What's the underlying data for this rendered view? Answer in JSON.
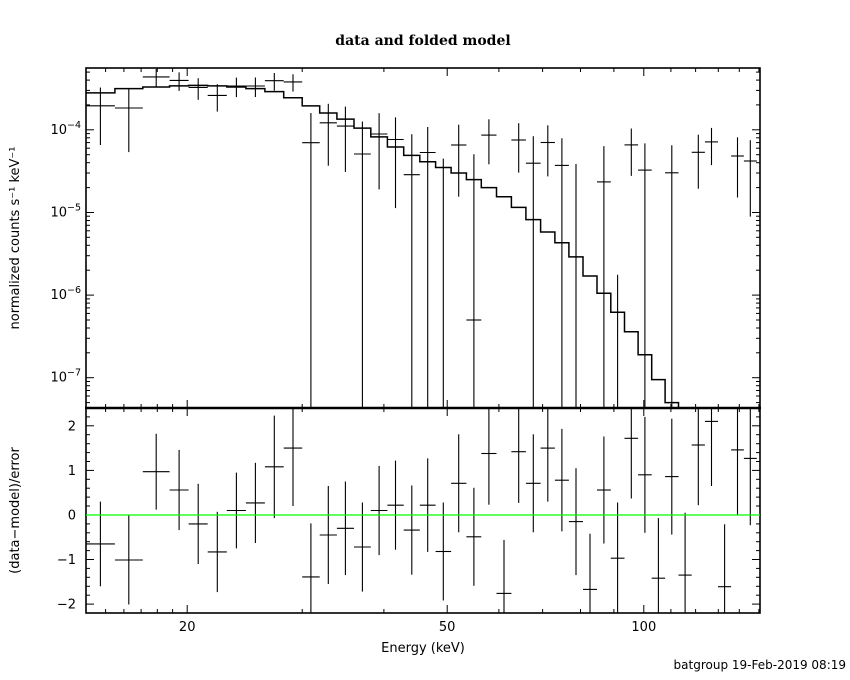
{
  "header": {
    "title": "data and folded model"
  },
  "footer": {
    "credit": "batgroup 19-Feb-2019 08:19"
  },
  "chart_data": {
    "type": "line",
    "title": "data and folded model",
    "legend": "none",
    "grid": "off",
    "background": "#ffffff",
    "line_color": "#000000",
    "zero_line_color": "#00ff00",
    "x_axis": {
      "label": "Energy (keV)",
      "scale": "log",
      "min": 14.0,
      "max": 150.6,
      "major_ticks": [
        20,
        50,
        100
      ],
      "major_tick_labels": [
        "20",
        "50",
        "100"
      ],
      "minor_ticks": [
        15,
        16,
        17,
        18,
        19,
        30,
        40,
        60,
        70,
        80,
        90,
        110,
        120,
        130,
        140,
        150
      ]
    },
    "y_axis_top": {
      "label": "normalized counts s⁻¹ keV⁻¹",
      "scale": "log",
      "min": 4.3e-08,
      "max": 0.00056,
      "major_tick_exponents": [
        -4,
        -5,
        -6,
        -7
      ]
    },
    "y_axis_bottom": {
      "label": "(data−model)/error",
      "scale": "linear",
      "min": -2.2,
      "max": 2.4,
      "major_ticks": [
        -2,
        -1,
        0,
        1,
        2
      ],
      "major_tick_labels": [
        "−2",
        "−1",
        "0",
        "1",
        "2"
      ],
      "minor_step": 0.2
    },
    "bins": [
      {
        "lo": 14.0,
        "hi": 15.5,
        "model": 0.00028,
        "res": -0.65,
        "res_err": 0.95,
        "err": 0.00013
      },
      {
        "lo": 15.5,
        "hi": 17.1,
        "model": 0.000315,
        "res": -1.01,
        "res_err": 1.0,
        "err": 0.00013
      },
      {
        "lo": 17.1,
        "hi": 18.8,
        "model": 0.00033,
        "res": 0.97,
        "res_err": 0.85,
        "err": 0.00011
      },
      {
        "lo": 18.8,
        "hi": 20.1,
        "model": 0.00034,
        "res": 0.56,
        "res_err": 0.9,
        "err": 0.0001
      },
      {
        "lo": 20.1,
        "hi": 21.5,
        "model": 0.000345,
        "res": -0.2,
        "res_err": 0.9,
        "err": 9.5e-05
      },
      {
        "lo": 21.5,
        "hi": 23.0,
        "model": 0.00034,
        "res": -0.83,
        "res_err": 0.9,
        "err": 9.5e-05
      },
      {
        "lo": 23.0,
        "hi": 24.6,
        "model": 0.00033,
        "res": 0.1,
        "res_err": 0.85,
        "err": 9e-05
      },
      {
        "lo": 24.6,
        "hi": 26.3,
        "model": 0.000315,
        "res": 0.27,
        "res_err": 0.9,
        "err": 9e-05
      },
      {
        "lo": 26.3,
        "hi": 28.1,
        "model": 0.00029,
        "res": 1.08,
        "res_err": 1.15,
        "err": 9.5e-05
      },
      {
        "lo": 28.1,
        "hi": 30.0,
        "model": 0.000245,
        "res": 1.5,
        "res_err": 1.3,
        "err": 9e-05
      },
      {
        "lo": 30.0,
        "hi": 31.9,
        "model": 0.000195,
        "res": -1.39,
        "res_err": 1.2,
        "err": 9e-05
      },
      {
        "lo": 31.9,
        "hi": 33.9,
        "model": 0.00016,
        "res": -0.45,
        "res_err": 1.1,
        "err": 8.5e-05
      },
      {
        "lo": 33.9,
        "hi": 36.0,
        "model": 0.000135,
        "res": -0.3,
        "res_err": 1.05,
        "err": 8e-05
      },
      {
        "lo": 36.0,
        "hi": 38.2,
        "model": 0.000105,
        "res": -0.72,
        "res_err": 1.0,
        "err": 7.5e-05
      },
      {
        "lo": 38.2,
        "hi": 40.5,
        "model": 8.2e-05,
        "res": 0.1,
        "res_err": 1.0,
        "err": 7e-05
      },
      {
        "lo": 40.5,
        "hi": 42.9,
        "model": 6.2e-05,
        "res": 0.22,
        "res_err": 1.0,
        "err": 6.5e-05
      },
      {
        "lo": 42.9,
        "hi": 45.4,
        "model": 4.9e-05,
        "res": -0.34,
        "res_err": 1.0,
        "err": 6e-05
      },
      {
        "lo": 45.4,
        "hi": 48.0,
        "model": 4.1e-05,
        "res": 0.22,
        "res_err": 1.05,
        "err": 5.5e-05
      },
      {
        "lo": 48.0,
        "hi": 50.7,
        "model": 3.5e-05,
        "res": -0.82,
        "res_err": 1.1,
        "err": 5.5e-05
      },
      {
        "lo": 50.7,
        "hi": 53.5,
        "model": 3e-05,
        "res": 0.71,
        "res_err": 1.1,
        "err": 5e-05
      },
      {
        "lo": 53.5,
        "hi": 56.4,
        "model": 2.5e-05,
        "res": -0.49,
        "res_err": 1.1,
        "err": 5e-05
      },
      {
        "lo": 56.4,
        "hi": 59.5,
        "model": 2e-05,
        "res": 1.38,
        "res_err": 1.15,
        "err": 4.8e-05
      },
      {
        "lo": 59.5,
        "hi": 62.7,
        "model": 1.55e-05,
        "res": -1.76,
        "res_err": 1.2,
        "err": 4.6e-05
      },
      {
        "lo": 62.7,
        "hi": 66.0,
        "model": 1.15e-05,
        "res": 1.42,
        "res_err": 1.15,
        "err": 4.5e-05
      },
      {
        "lo": 66.0,
        "hi": 69.5,
        "model": 8.2e-06,
        "res": 0.71,
        "res_err": 1.1,
        "err": 4.4e-05
      },
      {
        "lo": 69.5,
        "hi": 73.1,
        "model": 5.8e-06,
        "res": 1.5,
        "res_err": 1.2,
        "err": 4.3e-05
      },
      {
        "lo": 73.1,
        "hi": 76.8,
        "model": 4.3e-06,
        "res": 0.78,
        "res_err": 1.15,
        "err": 4.2e-05
      },
      {
        "lo": 76.8,
        "hi": 80.7,
        "model": 2.9e-06,
        "res": -0.15,
        "res_err": 1.2,
        "err": 4.2e-05
      },
      {
        "lo": 80.7,
        "hi": 84.8,
        "model": 1.7e-06,
        "res": -1.67,
        "res_err": 1.25,
        "err": 4e-05
      },
      {
        "lo": 84.8,
        "hi": 89.0,
        "model": 1.05e-06,
        "res": 0.56,
        "res_err": 1.2,
        "err": 4e-05
      },
      {
        "lo": 89.0,
        "hi": 93.4,
        "model": 6.2e-07,
        "res": -0.97,
        "res_err": 1.25,
        "err": 3.8e-05
      },
      {
        "lo": 93.4,
        "hi": 98.0,
        "model": 3.6e-07,
        "res": 1.72,
        "res_err": 1.35,
        "err": 3.8e-05
      },
      {
        "lo": 98.0,
        "hi": 102.8,
        "model": 1.9e-07,
        "res": 0.9,
        "res_err": 1.3,
        "err": 3.6e-05
      },
      {
        "lo": 102.8,
        "hi": 107.8,
        "model": 9.5e-08,
        "res": -1.42,
        "res_err": 1.35,
        "err": 3.6e-05
      },
      {
        "lo": 107.8,
        "hi": 113.0,
        "model": 5e-08,
        "res": 0.86,
        "res_err": 1.3,
        "err": 3.5e-05
      },
      {
        "lo": 113.0,
        "hi": 118.4,
        "model": null,
        "res": -1.35,
        "res_err": 1.4,
        "err": 3.5e-05
      },
      {
        "lo": 118.4,
        "hi": 124.0,
        "model": null,
        "res": 1.57,
        "res_err": 1.35,
        "err": 3.4e-05
      },
      {
        "lo": 124.0,
        "hi": 129.9,
        "model": null,
        "res": 2.1,
        "res_err": 1.45,
        "err": 3.4e-05
      },
      {
        "lo": 129.9,
        "hi": 136.0,
        "model": null,
        "res": -1.61,
        "res_err": 1.4,
        "err": 3.3e-05
      },
      {
        "lo": 136.0,
        "hi": 142.3,
        "model": null,
        "res": 1.46,
        "res_err": 1.45,
        "err": 3.3e-05
      },
      {
        "lo": 142.3,
        "hi": 148.9,
        "model": null,
        "res": 1.27,
        "res_err": 1.5,
        "err": 3.3e-05
      }
    ]
  }
}
